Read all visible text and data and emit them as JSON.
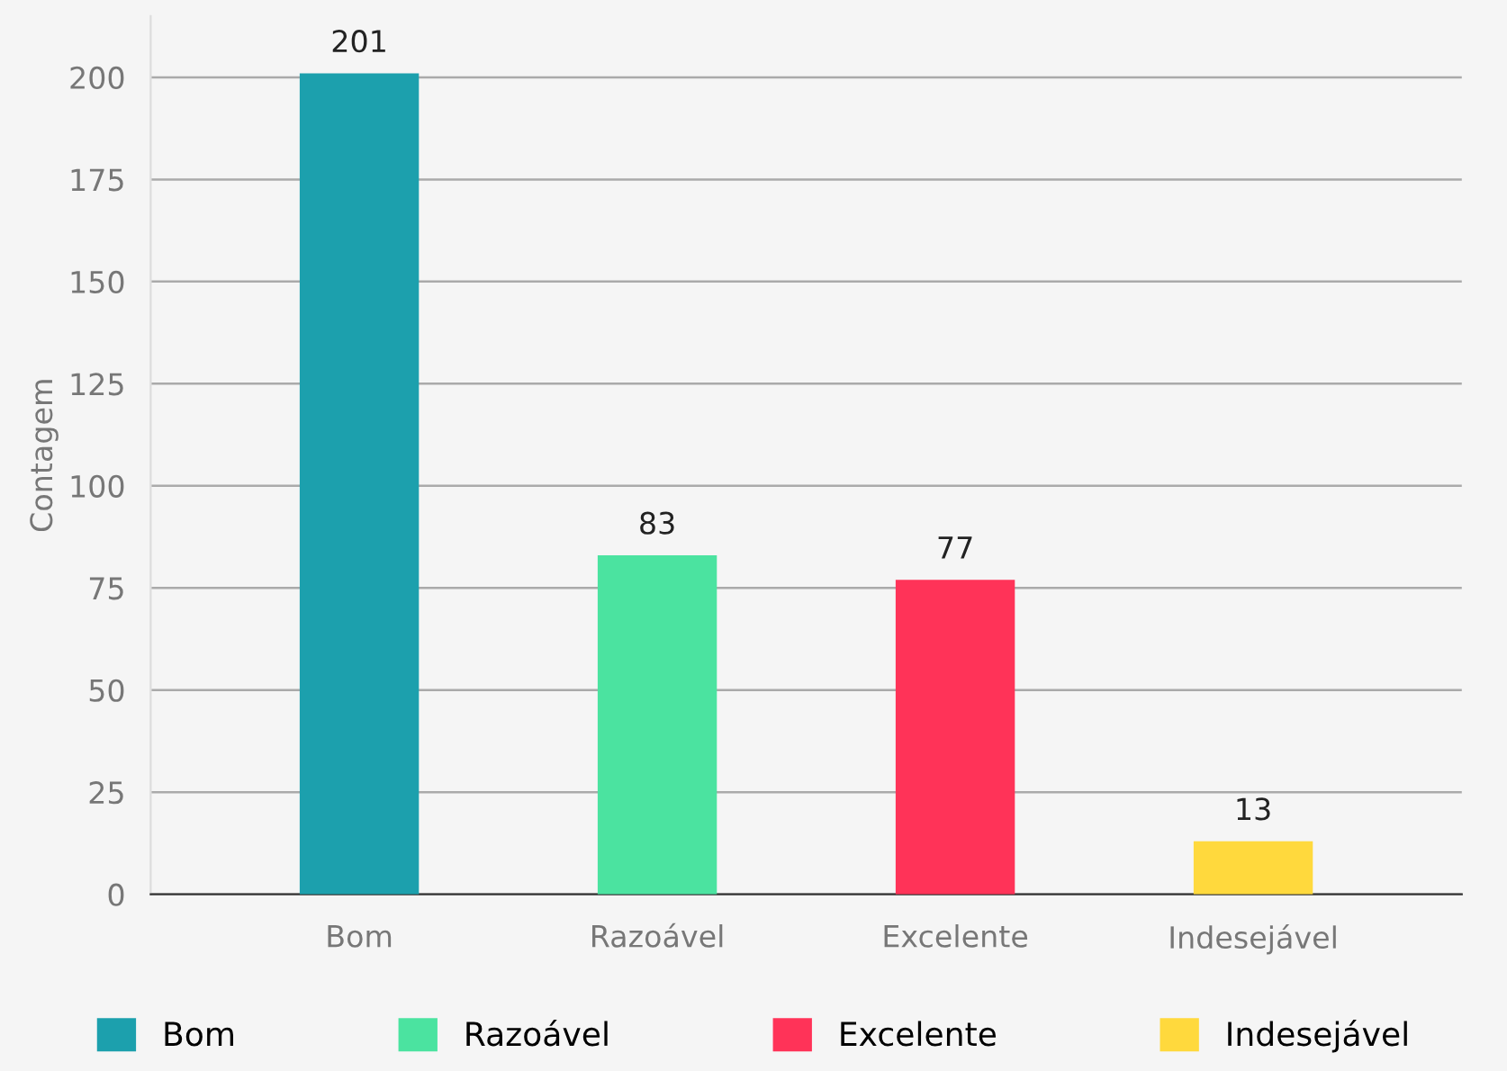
{
  "chart_data": {
    "type": "bar",
    "ylabel": "Contagem",
    "categories": [
      "Bom",
      "Razoável",
      "Excelente",
      "Indesejável"
    ],
    "series": [
      {
        "name": "Bom",
        "color": "#1ca0ad",
        "values": [
          201,
          null,
          null,
          null
        ]
      },
      {
        "name": "Razoável",
        "color": "#4be3a0",
        "values": [
          null,
          83,
          null,
          null
        ]
      },
      {
        "name": "Excelente",
        "color": "#ff3358",
        "values": [
          null,
          null,
          77,
          null
        ]
      },
      {
        "name": "Indesejável",
        "color": "#ffd93d",
        "values": [
          null,
          null,
          null,
          13
        ]
      }
    ],
    "ylim": [
      0,
      215
    ],
    "yticks": [
      0,
      25,
      50,
      75,
      100,
      125,
      150,
      175,
      200
    ],
    "grid": "y",
    "legend": "bottom",
    "data_labels": true
  }
}
